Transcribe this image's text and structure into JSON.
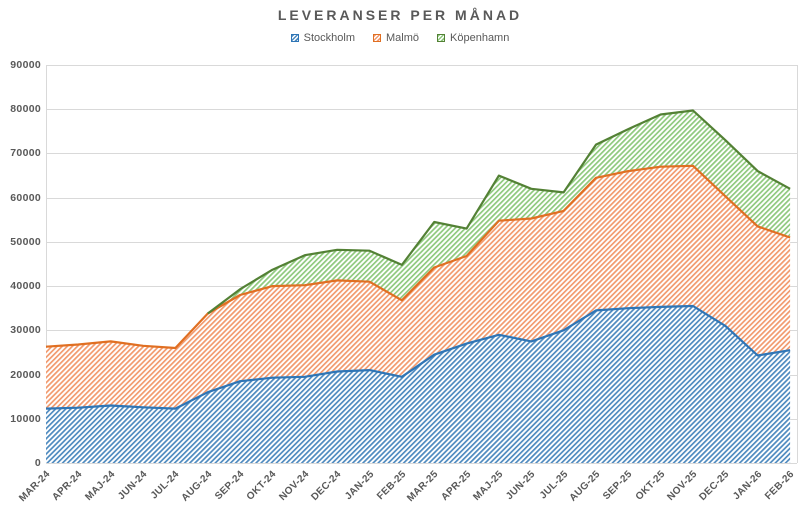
{
  "title": "LEVERANSER PER MÅNAD",
  "colors": {
    "grid": "#d9d9d9",
    "axis_text": "#595959",
    "title_text": "#595959",
    "background": "#ffffff"
  },
  "series_styles": [
    {
      "line": "#4e8abf",
      "edge": "#2e75b6"
    },
    {
      "line": "#f29a6e",
      "edge": "#e06f22"
    },
    {
      "line": "#8fc97e",
      "edge": "#538135"
    }
  ],
  "chart_data": {
    "type": "area",
    "stacked": true,
    "title": "LEVERANSER PER MÅNAD",
    "legend_position": "top",
    "grid": true,
    "ylim": [
      0,
      90000
    ],
    "ytick_labels": [
      "0",
      "10000",
      "20000",
      "30000",
      "40000",
      "50000",
      "60000",
      "70000",
      "80000",
      "90000"
    ],
    "categories": [
      "MAR-24",
      "APR-24",
      "MAJ-24",
      "JUN-24",
      "JUL-24",
      "AUG-24",
      "SEP-24",
      "OKT-24",
      "NOV-24",
      "DEC-24",
      "JAN-25",
      "FEB-25",
      "MAR-25",
      "APR-25",
      "MAJ-25",
      "JUN-25",
      "JUL-25",
      "AUG-25",
      "SEP-25",
      "OKT-25",
      "NOV-25",
      "DEC-25",
      "JAN-26",
      "FEB-26"
    ],
    "series": [
      {
        "name": "Stockholm",
        "values": [
          12300,
          12500,
          13000,
          12600,
          12300,
          16000,
          18500,
          19300,
          19500,
          20700,
          21000,
          19500,
          24500,
          27000,
          29000,
          27500,
          30000,
          34500,
          35000,
          35300,
          35500,
          31000,
          24300,
          25500
        ]
      },
      {
        "name": "Malmö",
        "values": [
          14000,
          14300,
          14500,
          13900,
          13700,
          17800,
          19500,
          20700,
          20700,
          20600,
          20000,
          17300,
          19700,
          19800,
          25800,
          27800,
          27000,
          30000,
          31000,
          31700,
          31700,
          29300,
          29200,
          25500
        ]
      },
      {
        "name": "Köpenhamn",
        "values": [
          0,
          0,
          0,
          0,
          0,
          0,
          1300,
          3700,
          6800,
          6900,
          7000,
          8000,
          10300,
          6200,
          10200,
          6700,
          4200,
          7500,
          9500,
          11800,
          12500,
          12700,
          12500,
          11000
        ]
      }
    ]
  }
}
